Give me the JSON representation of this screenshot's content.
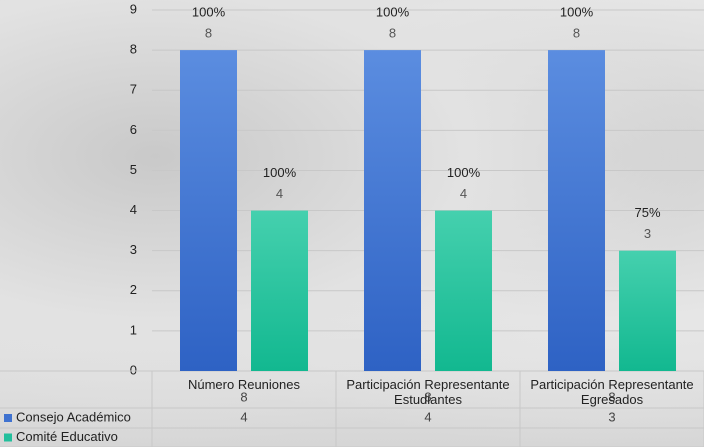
{
  "chart_data": {
    "type": "bar",
    "categories": [
      "Número Reuniones",
      "Participación Representante Estudiantes",
      "Participación Representante Egresados"
    ],
    "series": [
      {
        "name": "Consejo Académico",
        "color": "#3f72d0",
        "values": [
          8,
          8,
          8
        ],
        "percent_labels": [
          "100%",
          "100%",
          "100%"
        ]
      },
      {
        "name": "Comité Educativo",
        "color": "#22bf9c",
        "values": [
          4,
          4,
          3
        ],
        "percent_labels": [
          "100%",
          "100%",
          "75%"
        ]
      }
    ],
    "ylim": [
      0,
      9
    ],
    "yticks": [
      0,
      1,
      2,
      3,
      4,
      5,
      6,
      7,
      8,
      9
    ],
    "grid": true
  }
}
